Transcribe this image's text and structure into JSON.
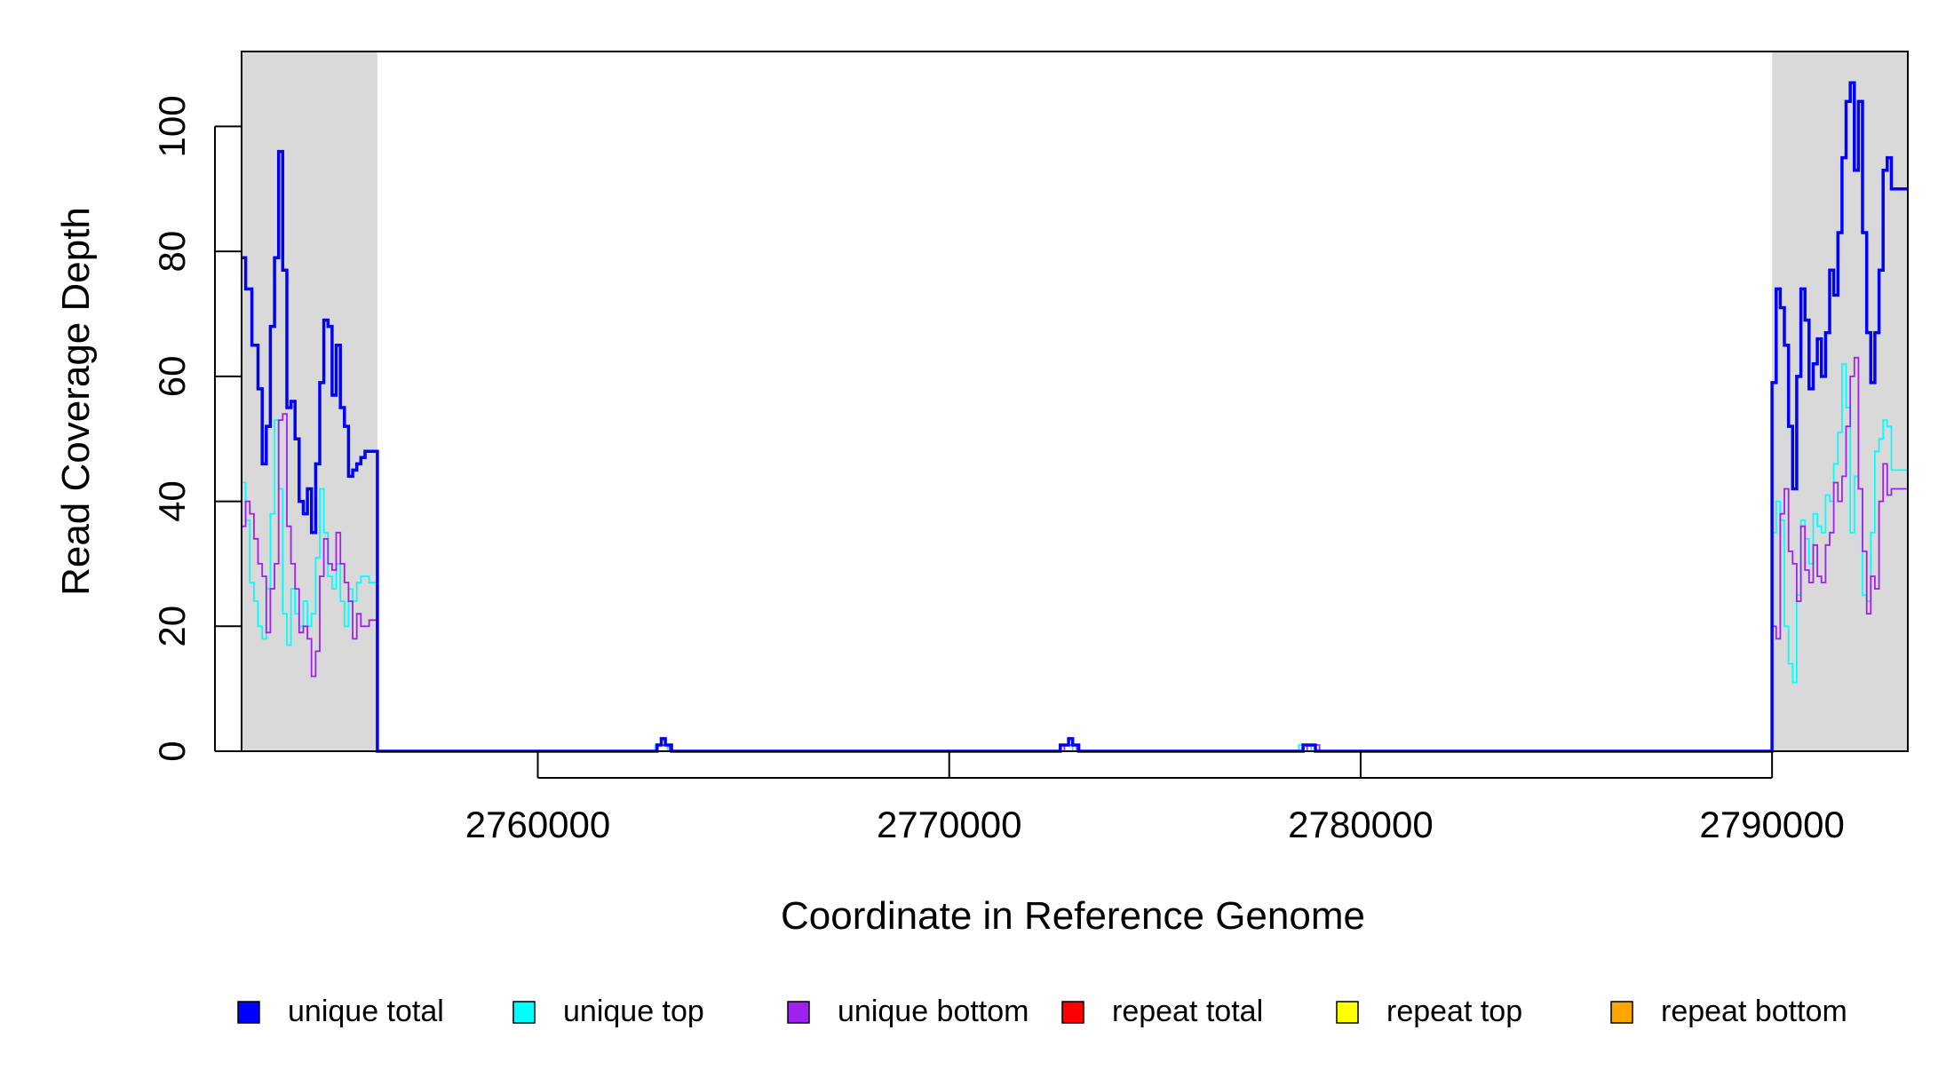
{
  "chart_data": {
    "type": "line",
    "title": "",
    "xlabel": "Coordinate in Reference Genome",
    "ylabel": "Read Coverage Depth",
    "xlim": [
      2752800,
      2793300
    ],
    "ylim": [
      0,
      112
    ],
    "x_ticks": [
      2760000,
      2770000,
      2780000,
      2790000
    ],
    "x_tick_labels": [
      "2760000",
      "2770000",
      "2780000",
      "2790000"
    ],
    "y_ticks": [
      0,
      20,
      40,
      60,
      80,
      100
    ],
    "y_tick_labels": [
      "0",
      "20",
      "40",
      "60",
      "80",
      "100"
    ],
    "grid": false,
    "legend_position": "bottom",
    "shaded_regions": [
      {
        "x_start": 2752800,
        "x_end": 2756100,
        "color": "#d9d9d9"
      },
      {
        "x_start": 2790000,
        "x_end": 2793300,
        "color": "#d9d9d9"
      }
    ],
    "series": [
      {
        "name": "unique total",
        "color": "#0000ff",
        "step": true,
        "points": [
          [
            2752800,
            79
          ],
          [
            2752900,
            74
          ],
          [
            2753050,
            65
          ],
          [
            2753200,
            58
          ],
          [
            2753300,
            46
          ],
          [
            2753400,
            52
          ],
          [
            2753500,
            68
          ],
          [
            2753600,
            79
          ],
          [
            2753700,
            96
          ],
          [
            2753800,
            77
          ],
          [
            2753900,
            55
          ],
          [
            2754000,
            56
          ],
          [
            2754100,
            50
          ],
          [
            2754200,
            40
          ],
          [
            2754300,
            38
          ],
          [
            2754400,
            42
          ],
          [
            2754500,
            35
          ],
          [
            2754600,
            46
          ],
          [
            2754700,
            59
          ],
          [
            2754800,
            69
          ],
          [
            2754900,
            68
          ],
          [
            2755000,
            57
          ],
          [
            2755100,
            65
          ],
          [
            2755200,
            55
          ],
          [
            2755300,
            52
          ],
          [
            2755400,
            44
          ],
          [
            2755500,
            45
          ],
          [
            2755600,
            46
          ],
          [
            2755700,
            47
          ],
          [
            2755800,
            48
          ],
          [
            2756100,
            0
          ],
          [
            2762900,
            1
          ],
          [
            2763000,
            2
          ],
          [
            2763100,
            1
          ],
          [
            2763250,
            0
          ],
          [
            2772700,
            1
          ],
          [
            2772900,
            2
          ],
          [
            2773000,
            1
          ],
          [
            2773150,
            0
          ],
          [
            2778600,
            1
          ],
          [
            2778900,
            0
          ],
          [
            2790000,
            59
          ],
          [
            2790100,
            74
          ],
          [
            2790200,
            71
          ],
          [
            2790300,
            65
          ],
          [
            2790400,
            52
          ],
          [
            2790500,
            42
          ],
          [
            2790600,
            60
          ],
          [
            2790700,
            74
          ],
          [
            2790800,
            69
          ],
          [
            2790900,
            58
          ],
          [
            2791000,
            62
          ],
          [
            2791100,
            66
          ],
          [
            2791200,
            60
          ],
          [
            2791300,
            67
          ],
          [
            2791400,
            77
          ],
          [
            2791500,
            73
          ],
          [
            2791600,
            83
          ],
          [
            2791700,
            95
          ],
          [
            2791800,
            104
          ],
          [
            2791900,
            107
          ],
          [
            2792000,
            93
          ],
          [
            2792100,
            104
          ],
          [
            2792200,
            83
          ],
          [
            2792300,
            67
          ],
          [
            2792400,
            59
          ],
          [
            2792500,
            67
          ],
          [
            2792600,
            77
          ],
          [
            2792700,
            93
          ],
          [
            2792800,
            95
          ],
          [
            2792900,
            90
          ]
        ]
      },
      {
        "name": "unique top",
        "color": "#00ffff",
        "step": true,
        "points": [
          [
            2752800,
            43
          ],
          [
            2752900,
            37
          ],
          [
            2753000,
            27
          ],
          [
            2753100,
            24
          ],
          [
            2753200,
            20
          ],
          [
            2753300,
            18
          ],
          [
            2753400,
            26
          ],
          [
            2753500,
            38
          ],
          [
            2753600,
            53
          ],
          [
            2753700,
            42
          ],
          [
            2753800,
            22
          ],
          [
            2753900,
            17
          ],
          [
            2754000,
            26
          ],
          [
            2754100,
            22
          ],
          [
            2754200,
            20
          ],
          [
            2754300,
            24
          ],
          [
            2754400,
            20
          ],
          [
            2754500,
            22
          ],
          [
            2754600,
            31
          ],
          [
            2754700,
            42
          ],
          [
            2754800,
            35
          ],
          [
            2754900,
            28
          ],
          [
            2755000,
            26
          ],
          [
            2755100,
            30
          ],
          [
            2755200,
            24
          ],
          [
            2755300,
            20
          ],
          [
            2755400,
            26
          ],
          [
            2755500,
            24
          ],
          [
            2755600,
            27
          ],
          [
            2755700,
            28
          ],
          [
            2755900,
            27
          ],
          [
            2756100,
            0
          ],
          [
            2762850,
            1
          ],
          [
            2763150,
            0
          ],
          [
            2772700,
            1
          ],
          [
            2773000,
            0
          ],
          [
            2778500,
            1
          ],
          [
            2778800,
            0
          ],
          [
            2790000,
            35
          ],
          [
            2790100,
            40
          ],
          [
            2790200,
            37
          ],
          [
            2790300,
            20
          ],
          [
            2790400,
            14
          ],
          [
            2790500,
            11
          ],
          [
            2790600,
            25
          ],
          [
            2790700,
            37
          ],
          [
            2790800,
            34
          ],
          [
            2790900,
            30
          ],
          [
            2791000,
            38
          ],
          [
            2791100,
            36
          ],
          [
            2791200,
            35
          ],
          [
            2791300,
            41
          ],
          [
            2791400,
            40
          ],
          [
            2791500,
            46
          ],
          [
            2791600,
            51
          ],
          [
            2791700,
            62
          ],
          [
            2791800,
            55
          ],
          [
            2791900,
            35
          ],
          [
            2792000,
            44
          ],
          [
            2792100,
            42
          ],
          [
            2792200,
            25
          ],
          [
            2792300,
            24
          ],
          [
            2792400,
            35
          ],
          [
            2792500,
            48
          ],
          [
            2792600,
            50
          ],
          [
            2792700,
            53
          ],
          [
            2792800,
            52
          ],
          [
            2792900,
            45
          ]
        ]
      },
      {
        "name": "unique bottom",
        "color": "#a020f0",
        "step": true,
        "points": [
          [
            2752800,
            36
          ],
          [
            2752900,
            40
          ],
          [
            2753000,
            38
          ],
          [
            2753100,
            34
          ],
          [
            2753200,
            30
          ],
          [
            2753300,
            28
          ],
          [
            2753400,
            19
          ],
          [
            2753500,
            26
          ],
          [
            2753600,
            30
          ],
          [
            2753700,
            53
          ],
          [
            2753800,
            54
          ],
          [
            2753900,
            36
          ],
          [
            2754000,
            30
          ],
          [
            2754100,
            26
          ],
          [
            2754200,
            19
          ],
          [
            2754300,
            20
          ],
          [
            2754400,
            18
          ],
          [
            2754500,
            12
          ],
          [
            2754600,
            16
          ],
          [
            2754700,
            28
          ],
          [
            2754800,
            34
          ],
          [
            2754900,
            30
          ],
          [
            2755000,
            29
          ],
          [
            2755100,
            35
          ],
          [
            2755200,
            30
          ],
          [
            2755300,
            27
          ],
          [
            2755400,
            24
          ],
          [
            2755500,
            18
          ],
          [
            2755600,
            22
          ],
          [
            2755700,
            20
          ],
          [
            2755900,
            21
          ],
          [
            2756100,
            0
          ],
          [
            2762900,
            1
          ],
          [
            2763200,
            0
          ],
          [
            2772800,
            1
          ],
          [
            2773100,
            0
          ],
          [
            2778700,
            1
          ],
          [
            2779000,
            0
          ],
          [
            2790000,
            20
          ],
          [
            2790100,
            18
          ],
          [
            2790200,
            38
          ],
          [
            2790300,
            42
          ],
          [
            2790400,
            32
          ],
          [
            2790500,
            30
          ],
          [
            2790600,
            24
          ],
          [
            2790700,
            36
          ],
          [
            2790800,
            29
          ],
          [
            2790900,
            27
          ],
          [
            2791000,
            33
          ],
          [
            2791100,
            28
          ],
          [
            2791200,
            27
          ],
          [
            2791300,
            33
          ],
          [
            2791400,
            35
          ],
          [
            2791500,
            43
          ],
          [
            2791600,
            40
          ],
          [
            2791700,
            44
          ],
          [
            2791800,
            52
          ],
          [
            2791900,
            60
          ],
          [
            2792000,
            63
          ],
          [
            2792100,
            42
          ],
          [
            2792200,
            32
          ],
          [
            2792300,
            22
          ],
          [
            2792400,
            28
          ],
          [
            2792500,
            26
          ],
          [
            2792600,
            40
          ],
          [
            2792700,
            46
          ],
          [
            2792800,
            41
          ],
          [
            2792900,
            42
          ]
        ]
      },
      {
        "name": "repeat total",
        "color": "#ff0000",
        "step": true,
        "points": [
          [
            2752800,
            0
          ],
          [
            2793300,
            0
          ]
        ]
      },
      {
        "name": "repeat top",
        "color": "#ffff00",
        "step": true,
        "points": [
          [
            2752800,
            0
          ],
          [
            2793300,
            0
          ]
        ]
      },
      {
        "name": "repeat bottom",
        "color": "#ffa500",
        "step": true,
        "points": [
          [
            2752800,
            0
          ],
          [
            2793300,
            0
          ]
        ]
      }
    ]
  }
}
